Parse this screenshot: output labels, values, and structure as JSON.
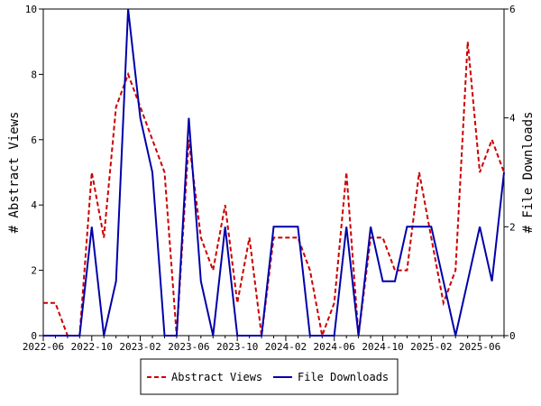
{
  "chart_data": {
    "type": "line",
    "x": [
      "2022-06",
      "2022-07",
      "2022-08",
      "2022-09",
      "2022-10",
      "2022-11",
      "2022-12",
      "2023-01",
      "2023-02",
      "2023-03",
      "2023-04",
      "2023-05",
      "2023-06",
      "2023-07",
      "2023-08",
      "2023-09",
      "2023-10",
      "2023-11",
      "2023-12",
      "2024-01",
      "2024-02",
      "2024-03",
      "2024-04",
      "2024-05",
      "2024-06",
      "2024-07",
      "2024-08",
      "2024-09",
      "2024-10",
      "2024-11",
      "2024-12",
      "2025-01",
      "2025-02",
      "2025-03",
      "2025-04",
      "2025-05",
      "2025-06",
      "2025-07",
      "2025-08"
    ],
    "xticks": [
      "2022-06",
      "2022-10",
      "2023-02",
      "2023-06",
      "2023-10",
      "2024-02",
      "2024-06",
      "2024-10",
      "2025-02",
      "2025-06"
    ],
    "series": [
      {
        "name": "Abstract Views",
        "axis": "left",
        "color": "#cc0000",
        "style": "dashed",
        "values": [
          1,
          1,
          0,
          0,
          5,
          3,
          7,
          8,
          7,
          6,
          5,
          0,
          6,
          3,
          2,
          4,
          1,
          3,
          0,
          3,
          3,
          3,
          2,
          0,
          1,
          5,
          0,
          3,
          3,
          2,
          2,
          5,
          3,
          1,
          2,
          9,
          5,
          6,
          5
        ]
      },
      {
        "name": "File Downloads",
        "axis": "right",
        "color": "#0000aa",
        "style": "solid",
        "values": [
          0,
          0,
          0,
          0,
          2,
          0,
          1,
          6,
          4,
          3,
          0,
          0,
          4,
          1,
          0,
          2,
          0,
          0,
          0,
          2,
          2,
          2,
          0,
          0,
          0,
          2,
          0,
          2,
          1,
          1,
          2,
          2,
          2,
          1,
          0,
          1,
          2,
          1,
          3
        ]
      }
    ],
    "ylabel": "# Abstract Views",
    "y2label": "# File Downloads",
    "ylim": [
      0,
      10
    ],
    "y2lim": [
      0,
      6
    ],
    "yticks": [
      0,
      2,
      4,
      6,
      8,
      10
    ],
    "y2ticks": [
      0,
      2,
      4,
      6
    ],
    "grid": false,
    "legend": "bottom-center"
  }
}
